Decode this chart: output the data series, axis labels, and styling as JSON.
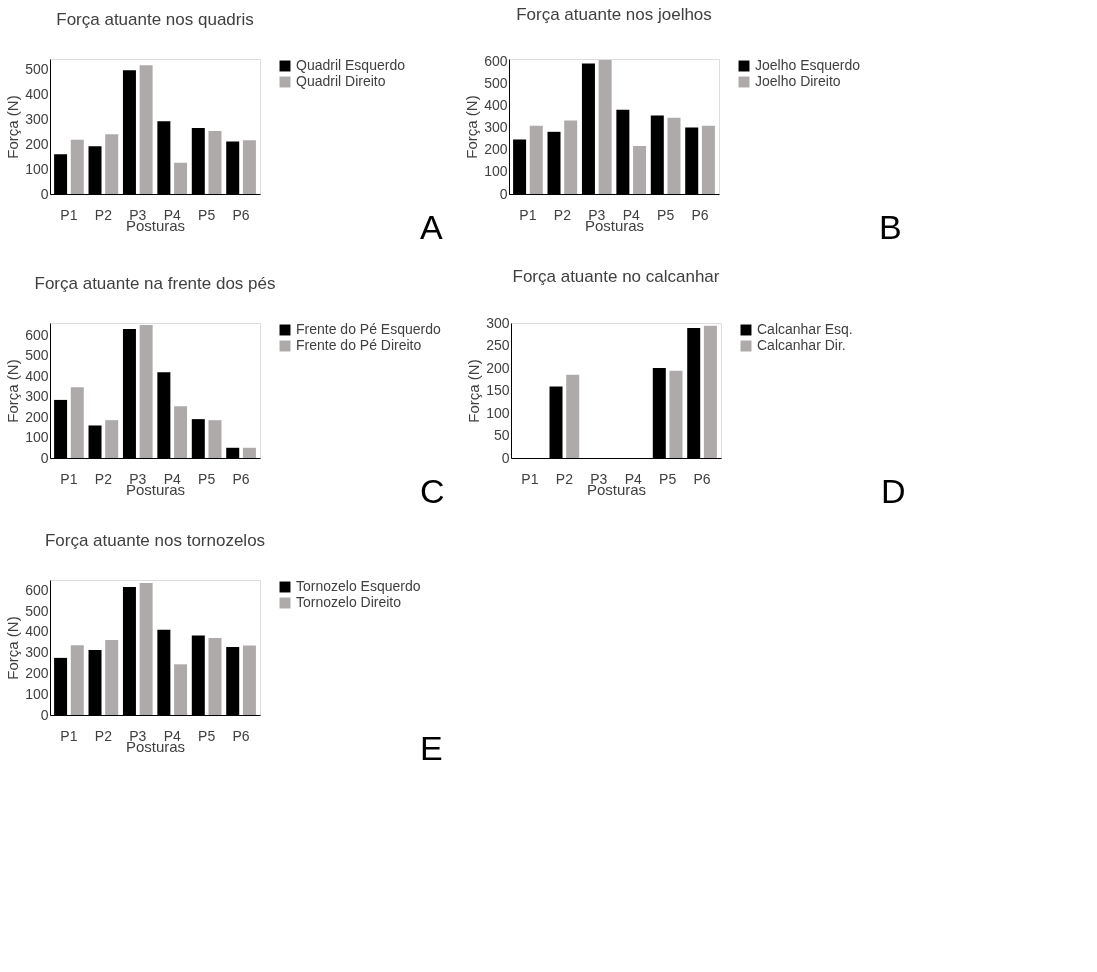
{
  "chart_data": [
    {
      "type": "bar",
      "title": "Força atuante nos quadris",
      "xlabel": "Posturas",
      "ylabel": "Força (N)",
      "categories": [
        "P1",
        "P2",
        "P3",
        "P4",
        "P5",
        "P6"
      ],
      "series": [
        {
          "name": "Quadril Esquerdo",
          "color": "#000000",
          "values": [
            159,
            191,
            495,
            291,
            264,
            210
          ]
        },
        {
          "name": "Quadril Direito",
          "color": "#aeaaaa",
          "values": [
            217,
            239,
            515,
            125,
            252,
            215
          ]
        }
      ],
      "ylim": [
        0,
        540
      ],
      "yticks": [
        0,
        100,
        200,
        300,
        400,
        500
      ],
      "grid": false,
      "legend": "right",
      "annotations": [
        "A"
      ]
    },
    {
      "type": "bar",
      "title": "Força atuante nos joelhos",
      "xlabel": "Posturas",
      "ylabel": "Força (N)",
      "categories": [
        "P1",
        "P2",
        "P3",
        "P4",
        "P5",
        "P6"
      ],
      "series": [
        {
          "name": "Joelho Esquerdo",
          "color": "#000000",
          "values": [
            246,
            281,
            590,
            381,
            355,
            300
          ]
        },
        {
          "name": "Joelho Direito",
          "color": "#aeaaaa",
          "values": [
            308,
            332,
            605,
            217,
            345,
            308
          ]
        }
      ],
      "ylim": [
        0,
        610
      ],
      "yticks": [
        0,
        100,
        200,
        300,
        400,
        500,
        600
      ],
      "grid": false,
      "legend": "right",
      "annotations": [
        "B"
      ]
    },
    {
      "type": "bar",
      "title": "Força atuante na frente dos pés",
      "xlabel": "Posturas",
      "ylabel": "Força (N)",
      "categories": [
        "P1",
        "P2",
        "P3",
        "P4",
        "P5",
        "P6"
      ],
      "series": [
        {
          "name": "Frente do Pé Esquerdo",
          "color": "#000000",
          "values": [
            284,
            159,
            631,
            419,
            190,
            50
          ]
        },
        {
          "name": "Frente do Pé Direito",
          "color": "#aeaaaa",
          "values": [
            346,
            185,
            650,
            253,
            185,
            50
          ]
        }
      ],
      "ylim": [
        0,
        660
      ],
      "yticks": [
        0,
        100,
        200,
        300,
        400,
        500,
        600
      ],
      "grid": false,
      "legend": "right",
      "annotations": [
        "C"
      ]
    },
    {
      "type": "bar",
      "title": "Força atuante no calcanhar",
      "xlabel": "Posturas",
      "ylabel": "Força (N)",
      "categories": [
        "P1",
        "P2",
        "P3",
        "P4",
        "P5",
        "P6"
      ],
      "series": [
        {
          "name": "Calcanhar Esq.",
          "color": "#000000",
          "values": [
            0,
            159,
            0,
            0,
            200,
            289
          ]
        },
        {
          "name": "Calcanhar Dir.",
          "color": "#aeaaaa",
          "values": [
            0,
            185,
            0,
            0,
            194,
            294
          ]
        }
      ],
      "ylim": [
        0,
        300
      ],
      "yticks": [
        0,
        50,
        100,
        150,
        200,
        250,
        300
      ],
      "grid": false,
      "legend": "right",
      "annotations": [
        "D"
      ]
    },
    {
      "type": "bar",
      "title": "Força atuante nos tornozelos",
      "xlabel": "Posturas",
      "ylabel": "Força (N)",
      "categories": [
        "P1",
        "P2",
        "P3",
        "P4",
        "P5",
        "P6"
      ],
      "series": [
        {
          "name": "Tornozelo Esquerdo",
          "color": "#000000",
          "values": [
            275,
            313,
            616,
            410,
            383,
            328
          ]
        },
        {
          "name": "Tornozelo Direito",
          "color": "#aeaaaa",
          "values": [
            336,
            361,
            635,
            244,
            371,
            335
          ]
        }
      ],
      "ylim": [
        0,
        650
      ],
      "yticks": [
        0,
        100,
        200,
        300,
        400,
        500,
        600
      ],
      "grid": false,
      "legend": "right",
      "annotations": [
        "E"
      ]
    }
  ]
}
